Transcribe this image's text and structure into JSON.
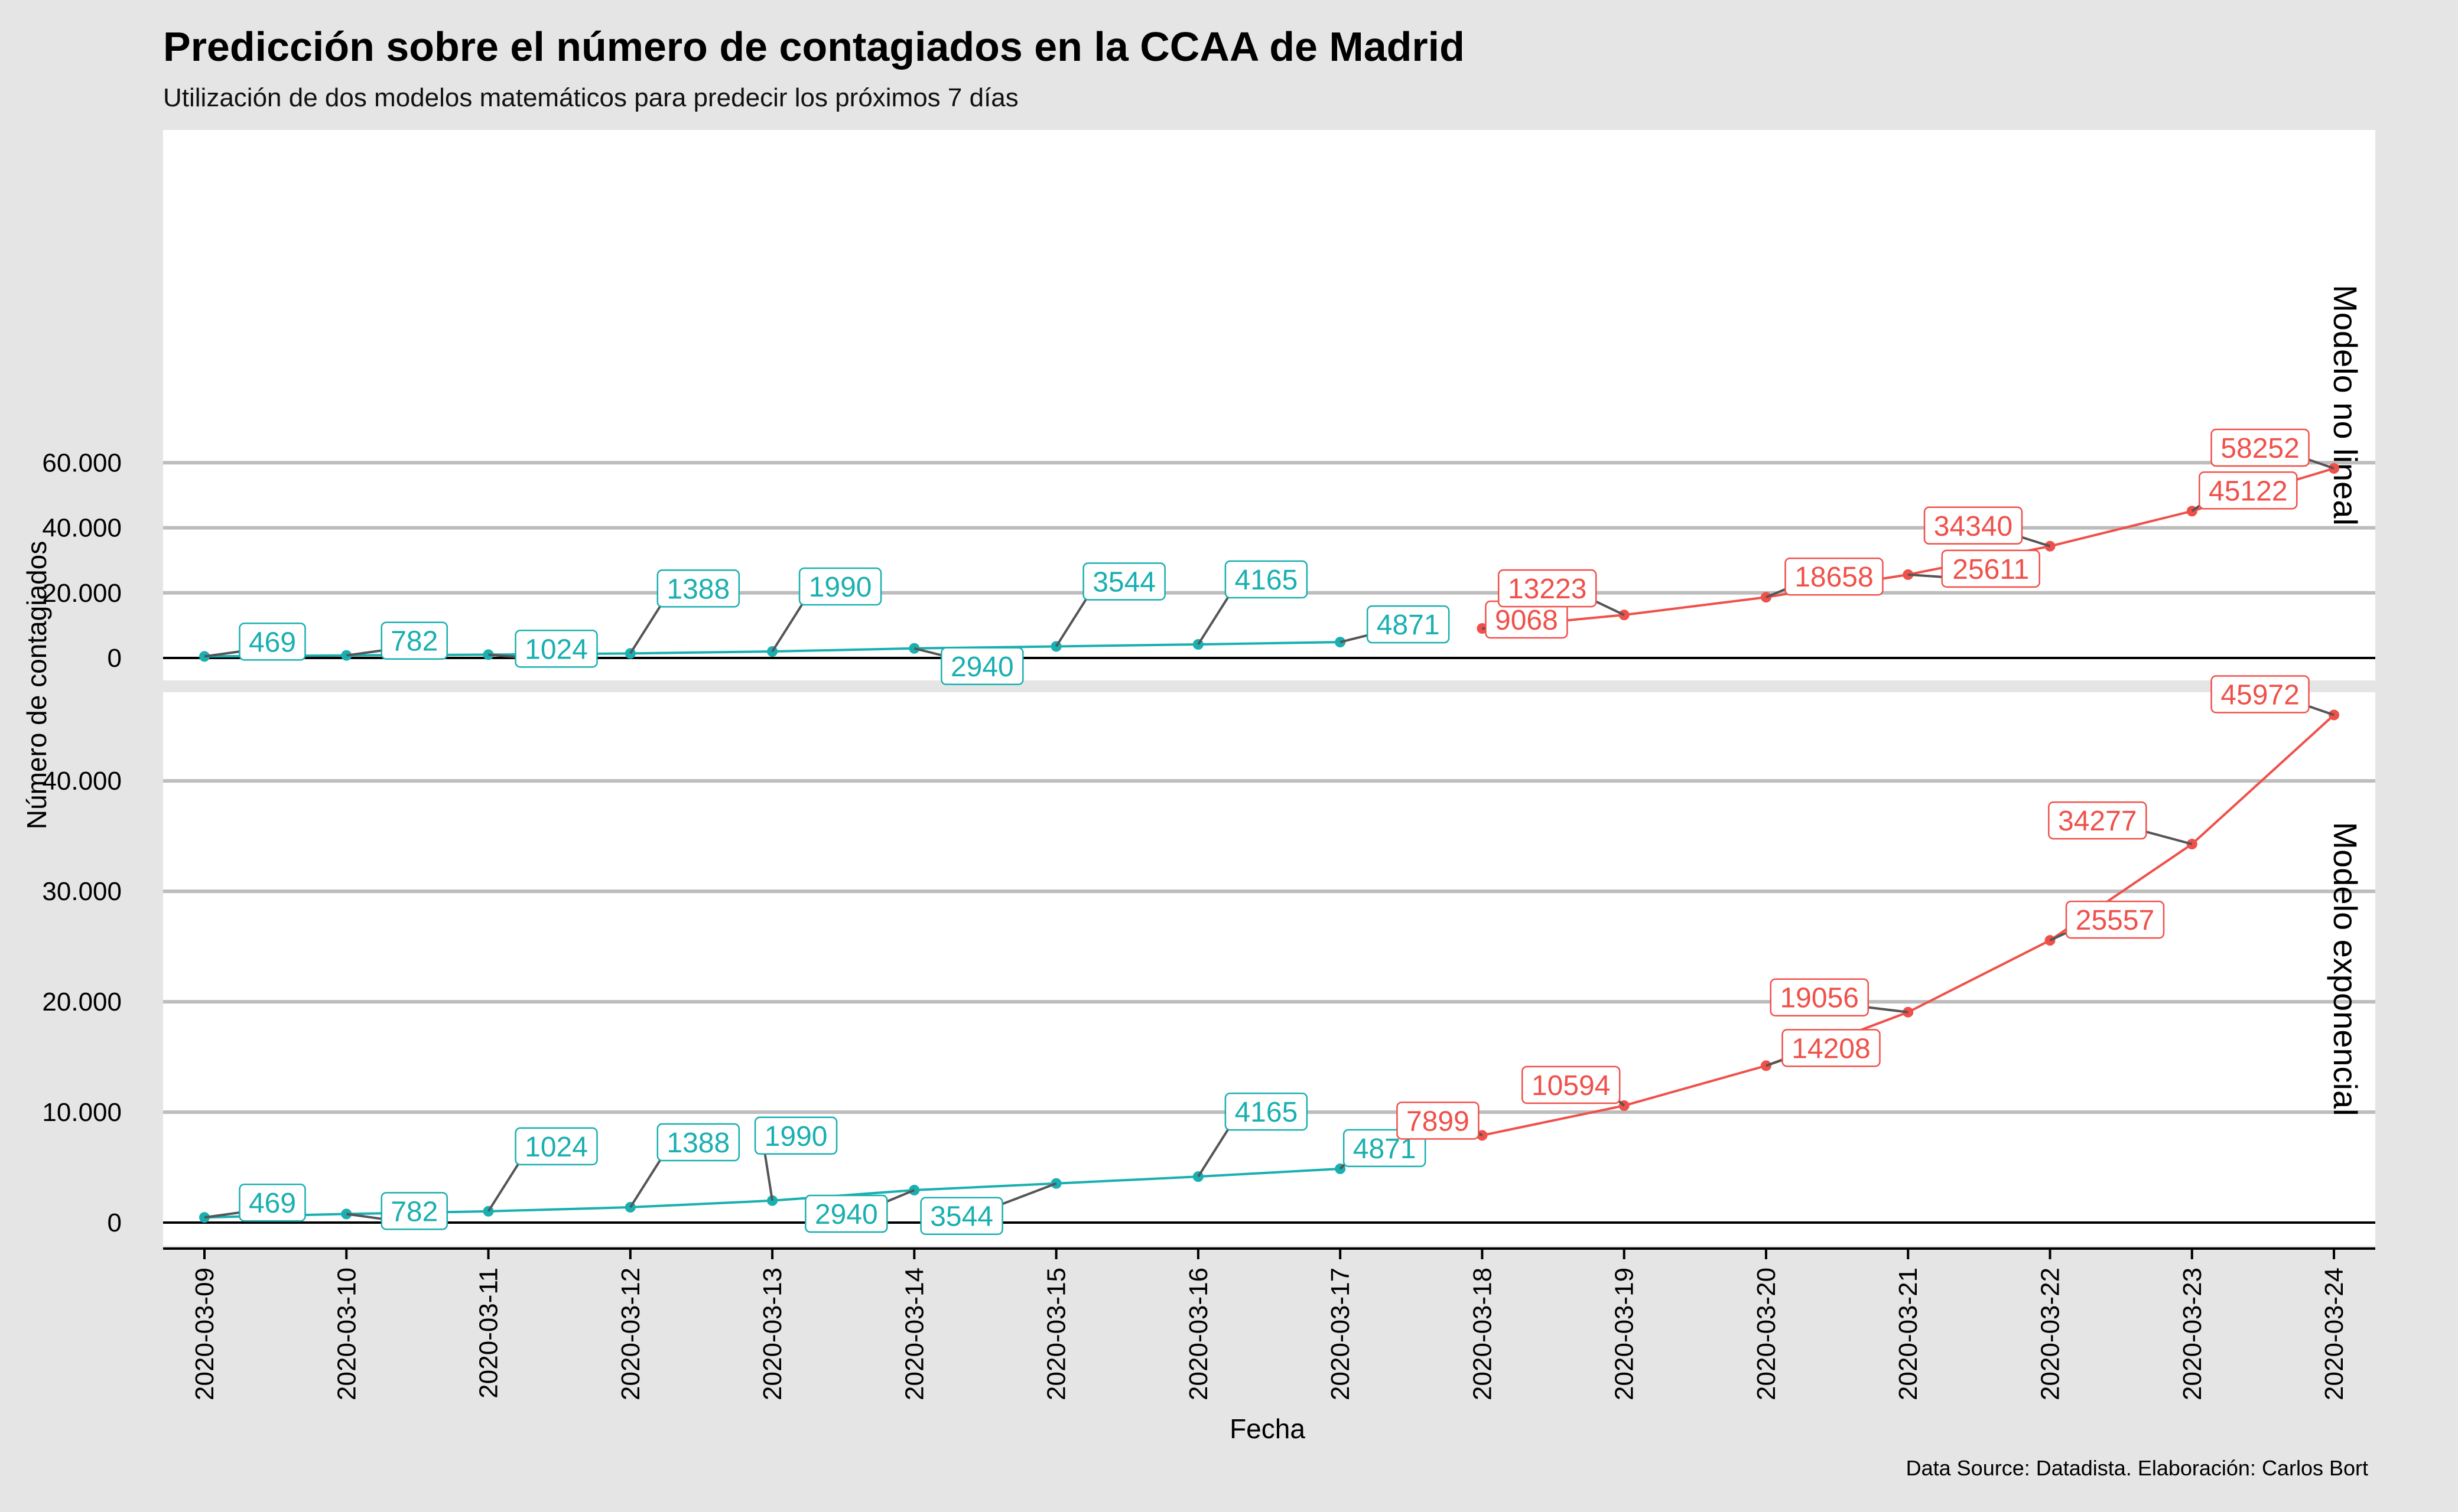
{
  "colors": {
    "observed": "#1aafb0",
    "predicted": "#f0504a"
  },
  "texts": {
    "title": "Predicción sobre el número de contagiados en la CCAA de Madrid",
    "subtitle": "Utilización de dos modelos matemáticos para predecir los próximos 7 días",
    "xlabel": "Fecha",
    "ylabel": "Número de contagiados",
    "caption": "Data Source: Datadista. Elaboración: Carlos Bort"
  },
  "chart_data": {
    "type": "line",
    "x": [
      "2020-03-09",
      "2020-03-10",
      "2020-03-11",
      "2020-03-12",
      "2020-03-13",
      "2020-03-14",
      "2020-03-15",
      "2020-03-16",
      "2020-03-17",
      "2020-03-18",
      "2020-03-19",
      "2020-03-20",
      "2020-03-21",
      "2020-03-22",
      "2020-03-23",
      "2020-03-24"
    ],
    "panels": [
      {
        "strip": "Modelo no lineal",
        "ylim": [
          0,
          60000
        ],
        "yticks": [
          0,
          20000,
          40000,
          60000
        ],
        "ytick_labels": [
          "0",
          "20.000",
          "40.000",
          "60.000"
        ],
        "observed": {
          "x": [
            "2020-03-09",
            "2020-03-10",
            "2020-03-11",
            "2020-03-12",
            "2020-03-13",
            "2020-03-14",
            "2020-03-15",
            "2020-03-16",
            "2020-03-17"
          ],
          "values": [
            469,
            782,
            1024,
            1388,
            1990,
            2940,
            3544,
            4165,
            4871
          ]
        },
        "predicted": {
          "x": [
            "2020-03-18",
            "2020-03-19",
            "2020-03-20",
            "2020-03-21",
            "2020-03-22",
            "2020-03-23",
            "2020-03-24"
          ],
          "values": [
            9068,
            13223,
            18658,
            25611,
            34340,
            45122,
            58252
          ],
          "labels": [
            "9068",
            "13223",
            "18658",
            "25611",
            "34340",
            "45122",
            "58252"
          ]
        }
      },
      {
        "strip": "Modelo exponencial",
        "ylim": [
          0,
          46000
        ],
        "yticks": [
          0,
          10000,
          20000,
          30000,
          40000
        ],
        "ytick_labels": [
          "0",
          "10.000",
          "20.000",
          "30.000",
          "40.000"
        ],
        "observed": {
          "x": [
            "2020-03-09",
            "2020-03-10",
            "2020-03-11",
            "2020-03-12",
            "2020-03-13",
            "2020-03-14",
            "2020-03-15",
            "2020-03-16",
            "2020-03-17"
          ],
          "values": [
            469,
            782,
            1024,
            1388,
            1990,
            2940,
            3544,
            4165,
            4871
          ]
        },
        "predicted": {
          "x": [
            "2020-03-18",
            "2020-03-19",
            "2020-03-20",
            "2020-03-21",
            "2020-03-22",
            "2020-03-23",
            "2020-03-24"
          ],
          "values": [
            7899,
            10594,
            14208,
            19056,
            25557,
            34277,
            45972
          ],
          "labels": [
            "7899",
            "10594",
            "14208",
            "19056",
            "25557",
            "34277",
            "45972"
          ]
        }
      }
    ]
  }
}
